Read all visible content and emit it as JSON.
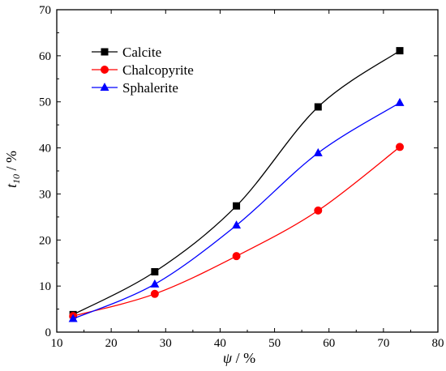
{
  "chart_data": {
    "type": "line",
    "title": "",
    "xlabel_symbol": "ψ",
    "xlabel_unit": " / %",
    "ylabel_symbol": "t",
    "ylabel_sub": "10",
    "ylabel_unit": " / %",
    "xlim": [
      10,
      80
    ],
    "ylim": [
      0,
      70
    ],
    "xticks": [
      10,
      20,
      30,
      40,
      50,
      60,
      70,
      80
    ],
    "yticks": [
      0,
      10,
      20,
      30,
      40,
      50,
      60,
      70
    ],
    "grid": false,
    "legend_position": "top-left",
    "series": [
      {
        "name": "Calcite",
        "color": "#000000",
        "marker": "square",
        "x": [
          13,
          28,
          43,
          58,
          73
        ],
        "y": [
          3.8,
          13.1,
          27.4,
          48.9,
          61.1
        ]
      },
      {
        "name": "Chalcopyrite",
        "color": "#ff0000",
        "marker": "circle",
        "x": [
          13,
          28,
          43,
          58,
          73
        ],
        "y": [
          3.5,
          8.3,
          16.5,
          26.4,
          40.2
        ]
      },
      {
        "name": "Sphalerite",
        "color": "#0000ff",
        "marker": "triangle",
        "x": [
          13,
          28,
          43,
          58,
          73
        ],
        "y": [
          2.9,
          10.4,
          23.2,
          38.9,
          49.8
        ]
      }
    ]
  }
}
